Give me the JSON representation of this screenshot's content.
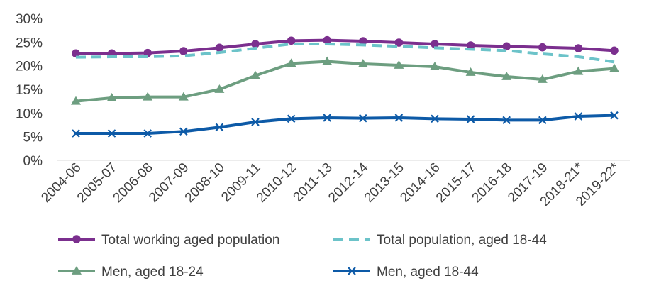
{
  "chart_data": {
    "type": "line",
    "categories": [
      "2004-06",
      "2005-07",
      "2006-08",
      "2007-09",
      "2008-10",
      "2009-11",
      "2010-12",
      "2011-13",
      "2012-14",
      "2013-15",
      "2014-16",
      "2015-17",
      "2016-18",
      "2017-19",
      "2018-21*",
      "2019-22*"
    ],
    "ylim": [
      0,
      30
    ],
    "yticks": [
      "0%",
      "5%",
      "10%",
      "15%",
      "20%",
      "25%",
      "30%"
    ],
    "y_unit": "%",
    "grid": false,
    "legend_position": "bottom",
    "series": [
      {
        "name": "Total working aged population",
        "color": "#7b2f8e",
        "style": "solid",
        "marker": "circle",
        "values": [
          22.6,
          22.6,
          22.7,
          23.1,
          23.8,
          24.6,
          25.3,
          25.4,
          25.2,
          24.9,
          24.6,
          24.3,
          24.1,
          23.9,
          23.7,
          23.2
        ]
      },
      {
        "name": "Total population, aged 18-44",
        "color": "#6cc3c9",
        "style": "dashed",
        "marker": "none",
        "values": [
          21.8,
          21.9,
          21.9,
          22.1,
          22.8,
          23.7,
          24.6,
          24.6,
          24.4,
          24.1,
          23.8,
          23.5,
          23.2,
          22.5,
          21.9,
          20.8
        ]
      },
      {
        "name": "Men, aged 18-24",
        "color": "#6d9e80",
        "style": "solid",
        "marker": "triangle",
        "values": [
          12.5,
          13.2,
          13.4,
          13.4,
          15.0,
          17.9,
          20.5,
          20.9,
          20.4,
          20.1,
          19.8,
          18.6,
          17.7,
          17.1,
          18.8,
          19.4
        ]
      },
      {
        "name": "Men, aged 18-44",
        "color": "#0d5aa7",
        "style": "solid",
        "marker": "x",
        "values": [
          5.7,
          5.7,
          5.7,
          6.1,
          7.0,
          8.1,
          8.8,
          9.0,
          8.9,
          9.0,
          8.8,
          8.7,
          8.5,
          8.5,
          9.3,
          9.5
        ]
      }
    ]
  }
}
